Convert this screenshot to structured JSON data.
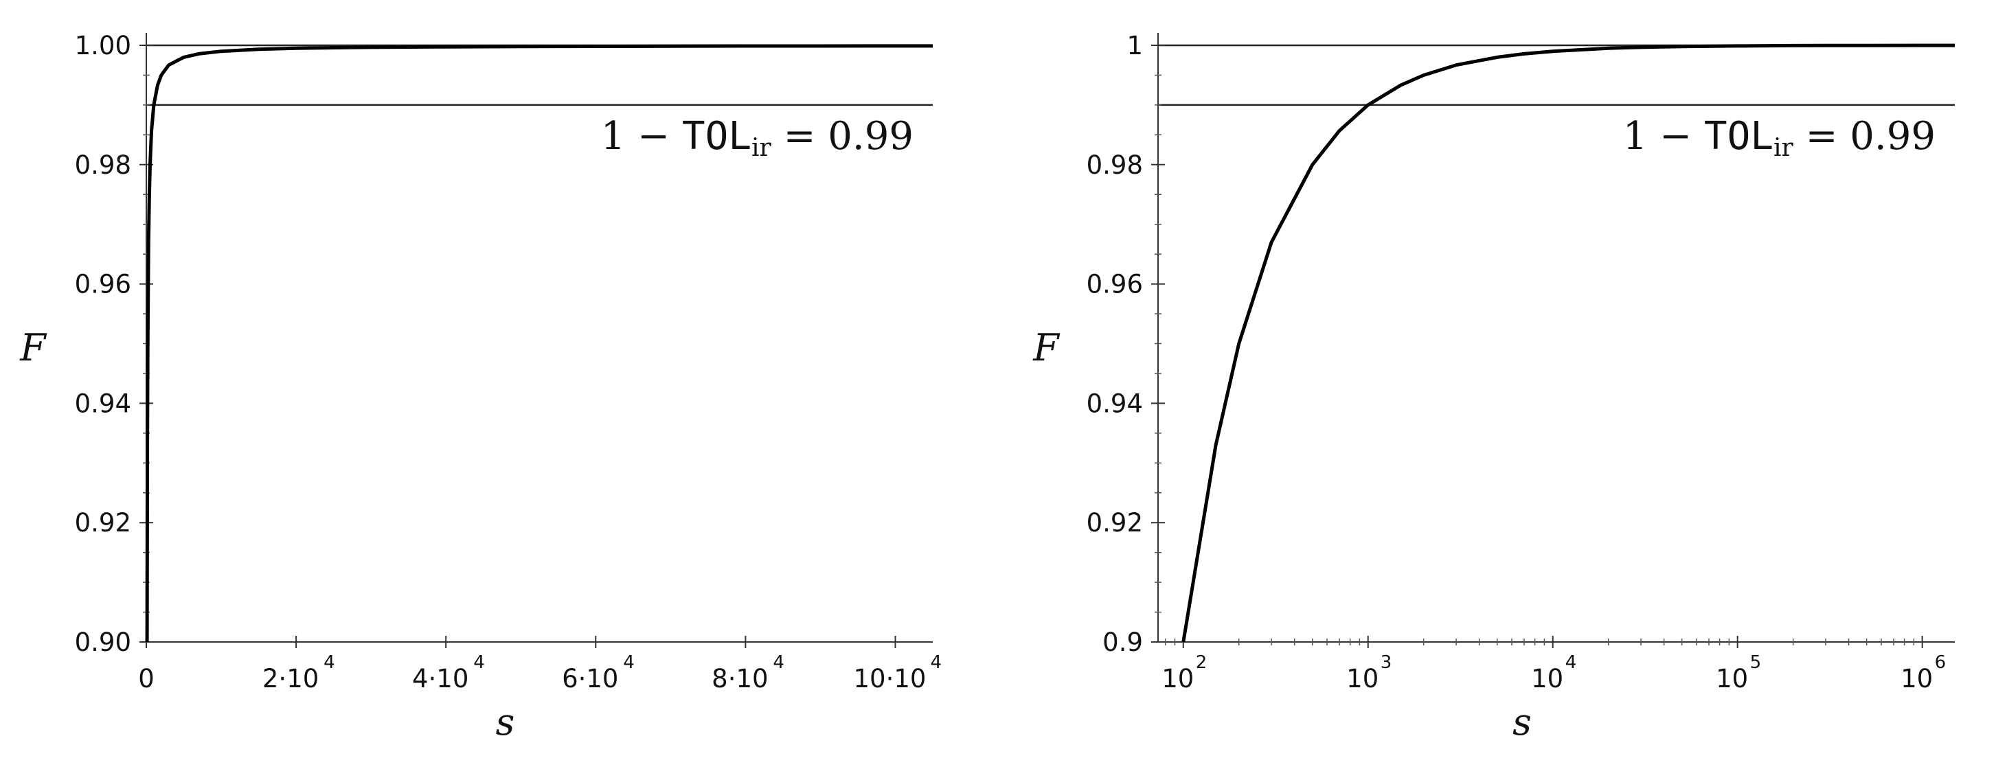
{
  "chart_data": [
    {
      "type": "line",
      "xscale": "linear",
      "xlabel": "s",
      "ylabel": "F",
      "xlim": [
        0,
        105000
      ],
      "ylim": [
        0.9,
        1.0
      ],
      "xticks": [
        {
          "value": 0,
          "base": "0",
          "exp": ""
        },
        {
          "value": 20000,
          "base": "2·10",
          "exp": "4"
        },
        {
          "value": 40000,
          "base": "4·10",
          "exp": "4"
        },
        {
          "value": 60000,
          "base": "6·10",
          "exp": "4"
        },
        {
          "value": 80000,
          "base": "8·10",
          "exp": "4"
        },
        {
          "value": 100000,
          "base": "10·10",
          "exp": "4"
        }
      ],
      "yticks": [
        {
          "value": 0.9,
          "label": "0.90"
        },
        {
          "value": 0.92,
          "label": "0.92"
        },
        {
          "value": 0.94,
          "label": "0.94"
        },
        {
          "value": 0.96,
          "label": "0.96"
        },
        {
          "value": 0.98,
          "label": "0.98"
        },
        {
          "value": 1.0,
          "label": "1.00"
        }
      ],
      "hlines": [
        1.0,
        0.99
      ],
      "annotation": {
        "pre": "1 − ",
        "mono": "TOL",
        "sub": "ir",
        "post": " = 0.99"
      },
      "series": [
        {
          "x": [
            100,
            150,
            200,
            300,
            400,
            500,
            700,
            1000,
            1500,
            2000,
            3000,
            5000,
            7000,
            10000,
            15000,
            20000,
            30000,
            40000,
            50000,
            60000,
            70000,
            80000,
            90000,
            100000,
            105000
          ],
          "y": [
            0.9,
            0.933,
            0.95,
            0.967,
            0.975,
            0.98,
            0.9857,
            0.99,
            0.9933,
            0.995,
            0.9967,
            0.998,
            0.99857,
            0.999,
            0.99933,
            0.9995,
            0.99967,
            0.99975,
            0.9998,
            0.99983,
            0.99986,
            0.99988,
            0.99989,
            0.9999,
            0.9999
          ]
        }
      ]
    },
    {
      "type": "line",
      "xscale": "log",
      "xlabel": "s",
      "ylabel": "F",
      "xlim": [
        73,
        1500000
      ],
      "ylim": [
        0.9,
        1.0
      ],
      "xticks": [
        {
          "value": 100,
          "base": "10",
          "exp": "2"
        },
        {
          "value": 1000,
          "base": "10",
          "exp": "3"
        },
        {
          "value": 10000,
          "base": "10",
          "exp": "4"
        },
        {
          "value": 100000,
          "base": "10",
          "exp": "5"
        },
        {
          "value": 1000000,
          "base": "10",
          "exp": "6"
        }
      ],
      "yticks": [
        {
          "value": 0.9,
          "label": "0.9"
        },
        {
          "value": 0.92,
          "label": "0.92"
        },
        {
          "value": 0.94,
          "label": "0.94"
        },
        {
          "value": 0.96,
          "label": "0.96"
        },
        {
          "value": 0.98,
          "label": "0.98"
        },
        {
          "value": 1.0,
          "label": "1"
        }
      ],
      "hlines": [
        1.0,
        0.99
      ],
      "annotation": {
        "pre": "1 − ",
        "mono": "TOL",
        "sub": "ir",
        "post": " = 0.99"
      },
      "series": [
        {
          "x": [
            100,
            150,
            200,
            300,
            500,
            700,
            1000,
            1500,
            2000,
            3000,
            5000,
            7000,
            10000,
            20000,
            30000,
            50000,
            100000,
            200000,
            300000,
            500000,
            1000000,
            1500000
          ],
          "y": [
            0.9,
            0.933,
            0.95,
            0.967,
            0.98,
            0.9857,
            0.99,
            0.9933,
            0.995,
            0.9967,
            0.998,
            0.99857,
            0.999,
            0.9995,
            0.99967,
            0.9998,
            0.9999,
            0.99995,
            0.99997,
            0.99998,
            0.99999,
            0.999993
          ]
        }
      ]
    }
  ]
}
